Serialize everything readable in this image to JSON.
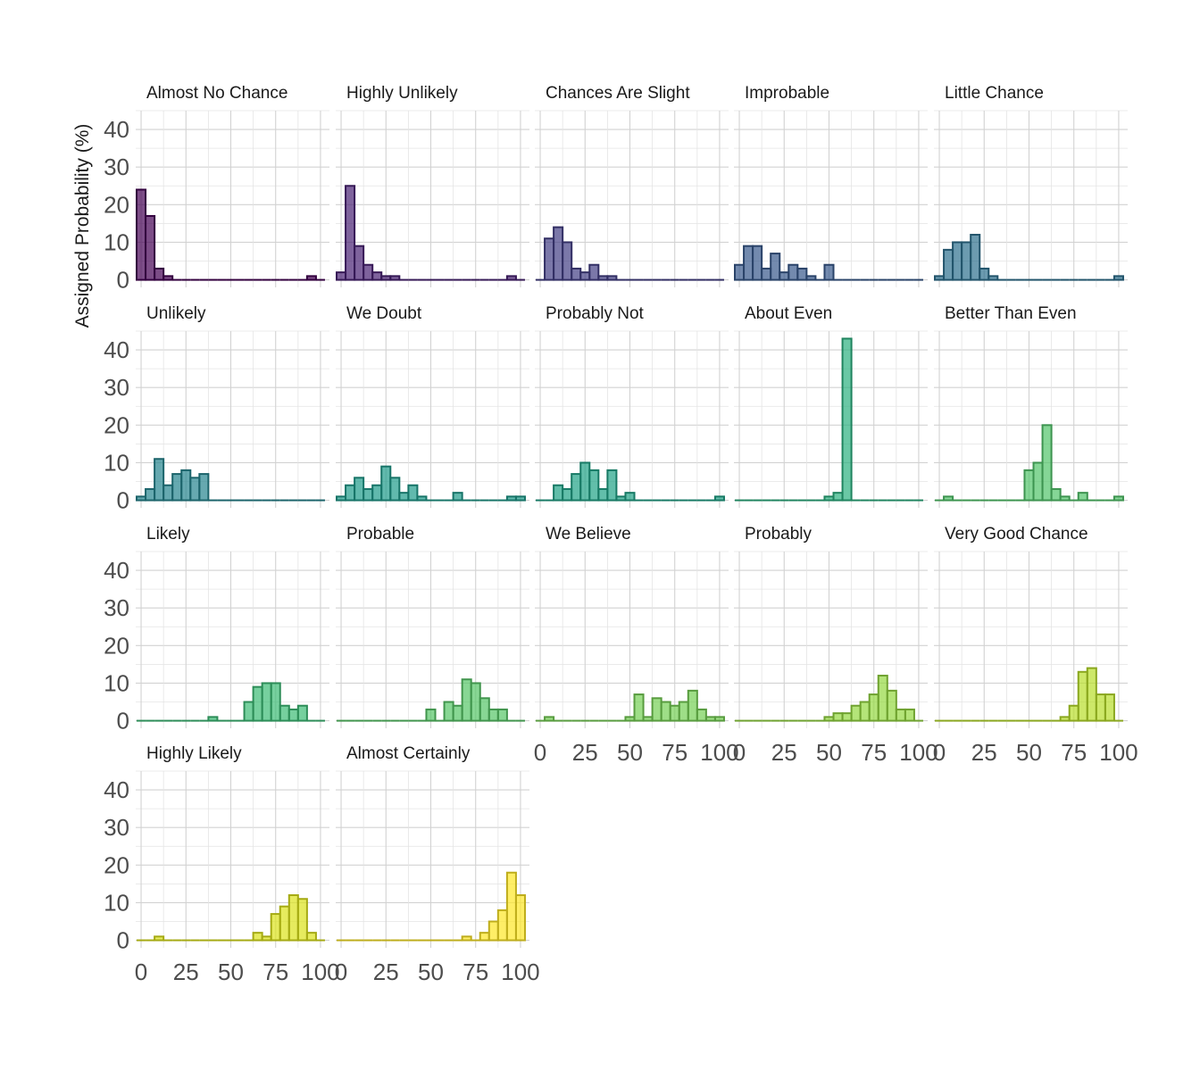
{
  "chart_data": {
    "type": "bar",
    "ylabel": "Assigned Probability (%)",
    "xlim": [
      -3,
      105
    ],
    "ylim": [
      -2,
      45
    ],
    "yticks": [
      0,
      10,
      20,
      30,
      40
    ],
    "xticks": [
      0,
      25,
      50,
      75,
      100
    ],
    "bin_width": 5,
    "bin_starts": [
      -2.5,
      2.5,
      7.5,
      12.5,
      17.5,
      22.5,
      27.5,
      32.5,
      37.5,
      42.5,
      47.5,
      52.5,
      57.5,
      62.5,
      67.5,
      72.5,
      77.5,
      82.5,
      87.5,
      92.5,
      97.5
    ],
    "grid": true,
    "facets": [
      {
        "title": "Almost No Chance",
        "fill": "#440154",
        "values": [
          24,
          17,
          3,
          1,
          0,
          0,
          0,
          0,
          0,
          0,
          0,
          0,
          0,
          0,
          0,
          0,
          0,
          0,
          0,
          1,
          0
        ]
      },
      {
        "title": "Highly Unlikely",
        "fill": "#482173",
        "values": [
          2,
          25,
          9,
          4,
          2,
          1,
          1,
          0,
          0,
          0,
          0,
          0,
          0,
          0,
          0,
          0,
          0,
          0,
          0,
          1,
          0
        ]
      },
      {
        "title": "Chances Are Slight",
        "fill": "#433E85",
        "values": [
          0,
          11,
          14,
          10,
          3,
          2,
          4,
          1,
          1,
          0,
          0,
          0,
          0,
          0,
          0,
          0,
          0,
          0,
          0,
          0,
          0
        ]
      },
      {
        "title": "Improbable",
        "fill": "#38598C",
        "values": [
          4,
          9,
          9,
          3,
          7,
          2,
          4,
          3,
          1,
          0,
          4,
          0,
          0,
          0,
          0,
          0,
          0,
          0,
          0,
          0,
          0
        ]
      },
      {
        "title": "Little Chance",
        "fill": "#2D708E",
        "values": [
          1,
          8,
          10,
          10,
          12,
          3,
          1,
          0,
          0,
          0,
          0,
          0,
          0,
          0,
          0,
          0,
          0,
          0,
          0,
          0,
          1
        ]
      },
      {
        "title": "Unlikely",
        "fill": "#25858E",
        "values": [
          1,
          3,
          11,
          4,
          7,
          8,
          6,
          7,
          0,
          0,
          0,
          0,
          0,
          0,
          0,
          0,
          0,
          0,
          0,
          0,
          0
        ]
      },
      {
        "title": "We Doubt",
        "fill": "#1E9B8A",
        "values": [
          1,
          4,
          6,
          3,
          4,
          9,
          6,
          2,
          4,
          1,
          0,
          0,
          0,
          2,
          0,
          0,
          0,
          0,
          0,
          1,
          1
        ]
      },
      {
        "title": "Probably Not",
        "fill": "#20A386",
        "values": [
          0,
          0,
          4,
          3,
          7,
          10,
          8,
          3,
          8,
          1,
          2,
          0,
          0,
          0,
          0,
          0,
          0,
          0,
          0,
          0,
          1
        ]
      },
      {
        "title": "About Even",
        "fill": "#2BB07F",
        "values": [
          0,
          0,
          0,
          0,
          0,
          0,
          0,
          0,
          0,
          0,
          1,
          2,
          43,
          0,
          0,
          0,
          0,
          0,
          0,
          0,
          0
        ]
      },
      {
        "title": "Better Than Even",
        "fill": "#51C56A",
        "values": [
          0,
          1,
          0,
          0,
          0,
          0,
          0,
          0,
          0,
          0,
          8,
          10,
          20,
          3,
          1,
          0,
          2,
          0,
          0,
          0,
          1
        ]
      },
      {
        "title": "Likely",
        "fill": "#3CBC75",
        "values": [
          0,
          0,
          0,
          0,
          0,
          0,
          0,
          0,
          1,
          0,
          0,
          0,
          5,
          9,
          10,
          10,
          4,
          3,
          4,
          0,
          0
        ]
      },
      {
        "title": "Probable",
        "fill": "#56C667",
        "values": [
          0,
          0,
          0,
          0,
          0,
          0,
          0,
          0,
          0,
          0,
          3,
          0,
          5,
          4,
          11,
          10,
          6,
          3,
          3,
          0,
          0
        ]
      },
      {
        "title": "We Believe",
        "fill": "#75D054",
        "values": [
          0,
          1,
          0,
          0,
          0,
          0,
          0,
          0,
          0,
          0,
          1,
          7,
          1,
          6,
          5,
          4,
          5,
          8,
          3,
          1,
          1
        ]
      },
      {
        "title": "Probably",
        "fill": "#94D840",
        "values": [
          0,
          0,
          0,
          0,
          0,
          0,
          0,
          0,
          0,
          0,
          1,
          2,
          2,
          4,
          5,
          7,
          12,
          8,
          3,
          3,
          0
        ]
      },
      {
        "title": "Very Good Chance",
        "fill": "#B8DE29",
        "values": [
          0,
          0,
          0,
          0,
          0,
          0,
          0,
          0,
          0,
          0,
          0,
          0,
          0,
          0,
          1,
          4,
          13,
          14,
          7,
          7,
          0
        ]
      },
      {
        "title": "Highly Likely",
        "fill": "#DCE319",
        "values": [
          0,
          0,
          1,
          0,
          0,
          0,
          0,
          0,
          0,
          0,
          0,
          0,
          0,
          2,
          1,
          7,
          9,
          12,
          11,
          2,
          0
        ]
      },
      {
        "title": "Almost Certainly",
        "fill": "#FDE725",
        "values": [
          0,
          0,
          0,
          0,
          0,
          0,
          0,
          0,
          0,
          0,
          0,
          0,
          0,
          0,
          1,
          0,
          2,
          5,
          8,
          18,
          12
        ]
      }
    ]
  }
}
